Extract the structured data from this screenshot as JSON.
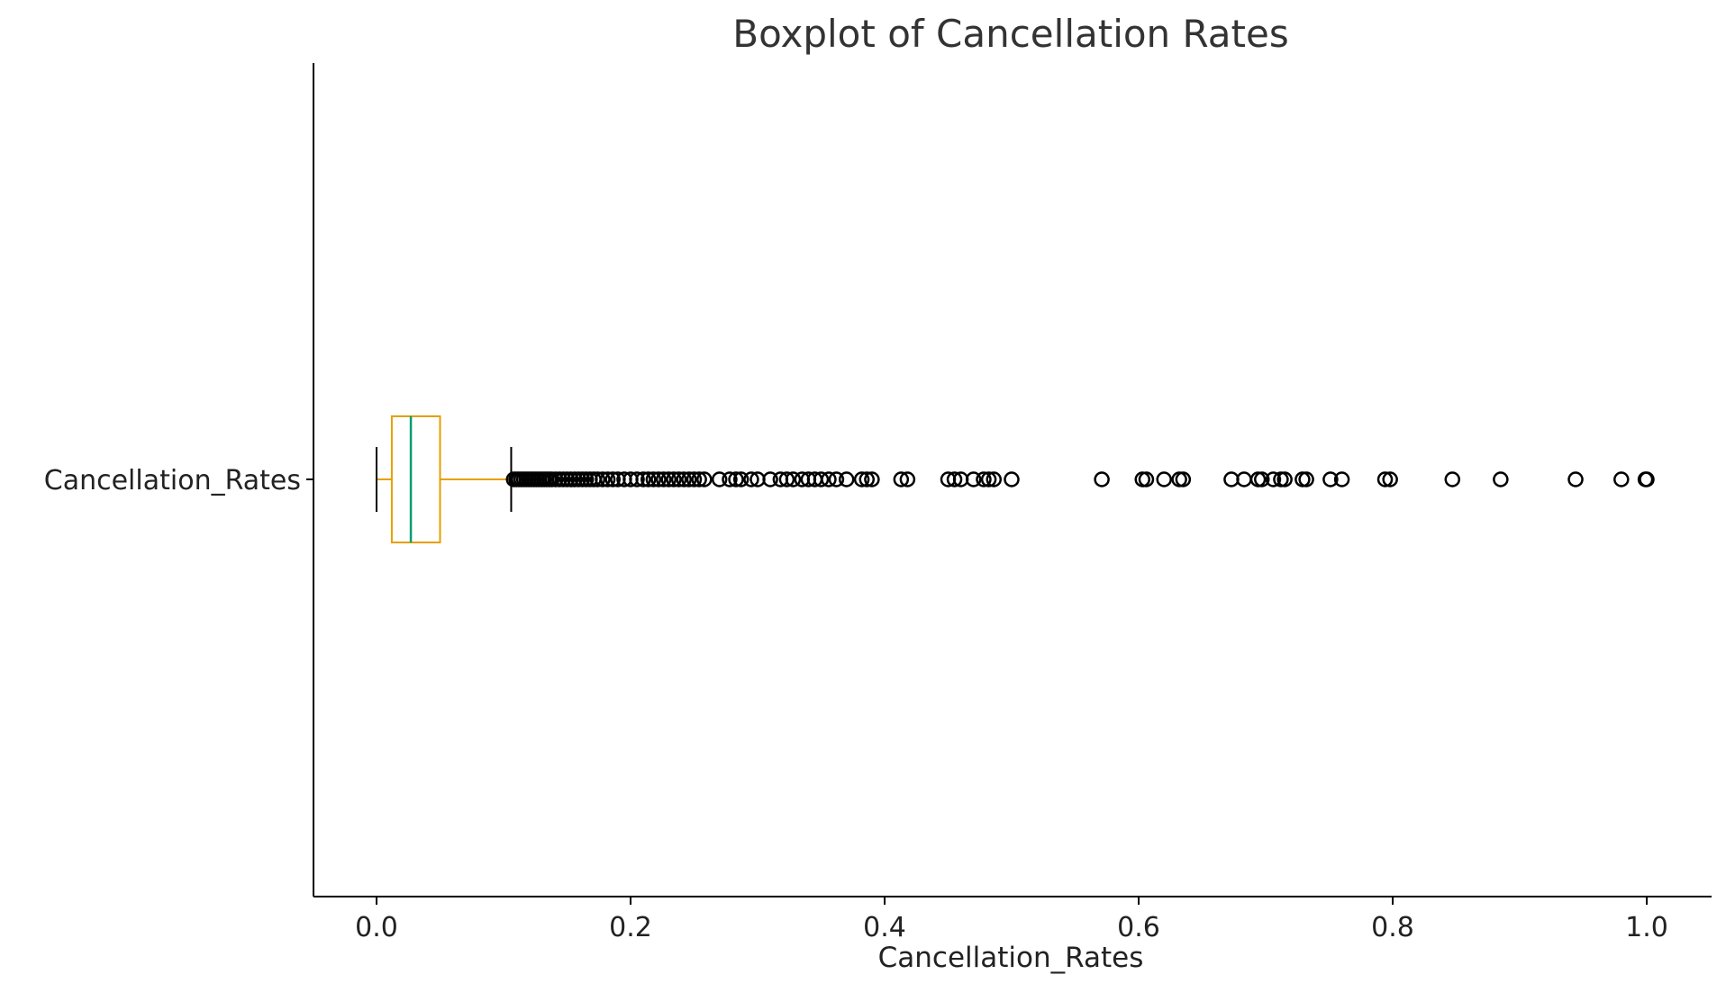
{
  "chart_data": {
    "type": "boxplot",
    "orientation": "horizontal",
    "title": "Boxplot of Cancellation Rates",
    "xlabel": "Cancellation_Rates",
    "ylabel": "",
    "category": "Cancellation_Rates",
    "xlim": [
      -0.05,
      1.05
    ],
    "xticks": [
      0.0,
      0.2,
      0.4,
      0.6,
      0.8,
      1.0
    ],
    "xtick_labels": [
      "0.0",
      "0.2",
      "0.4",
      "0.6",
      "0.8",
      "1.0"
    ],
    "grid": false,
    "box": {
      "whisker_low": 0.0,
      "q1": 0.012,
      "median": 0.027,
      "q3": 0.05,
      "whisker_high": 0.106
    },
    "outliers": [
      0.108,
      0.11,
      0.112,
      0.114,
      0.116,
      0.118,
      0.12,
      0.122,
      0.124,
      0.126,
      0.128,
      0.13,
      0.132,
      0.134,
      0.136,
      0.138,
      0.141,
      0.144,
      0.147,
      0.15,
      0.153,
      0.156,
      0.159,
      0.162,
      0.165,
      0.168,
      0.171,
      0.174,
      0.178,
      0.182,
      0.186,
      0.19,
      0.195,
      0.2,
      0.205,
      0.21,
      0.214,
      0.218,
      0.222,
      0.226,
      0.23,
      0.234,
      0.238,
      0.242,
      0.246,
      0.25,
      0.254,
      0.258,
      0.27,
      0.278,
      0.283,
      0.287,
      0.295,
      0.3,
      0.31,
      0.318,
      0.323,
      0.328,
      0.335,
      0.34,
      0.345,
      0.35,
      0.356,
      0.362,
      0.37,
      0.382,
      0.386,
      0.39,
      0.413,
      0.418,
      0.45,
      0.455,
      0.46,
      0.47,
      0.478,
      0.482,
      0.486,
      0.5,
      0.571,
      0.603,
      0.606,
      0.62,
      0.632,
      0.635,
      0.673,
      0.683,
      0.694,
      0.697,
      0.706,
      0.712,
      0.715,
      0.729,
      0.732,
      0.751,
      0.76,
      0.794,
      0.798,
      0.847,
      0.885,
      0.944,
      0.98,
      0.999,
      1.0
    ],
    "colors": {
      "box": "#E69F00",
      "median": "#009E73",
      "whisker_cap": "#000000",
      "outlier": "#000000",
      "axis": "#000000"
    }
  }
}
